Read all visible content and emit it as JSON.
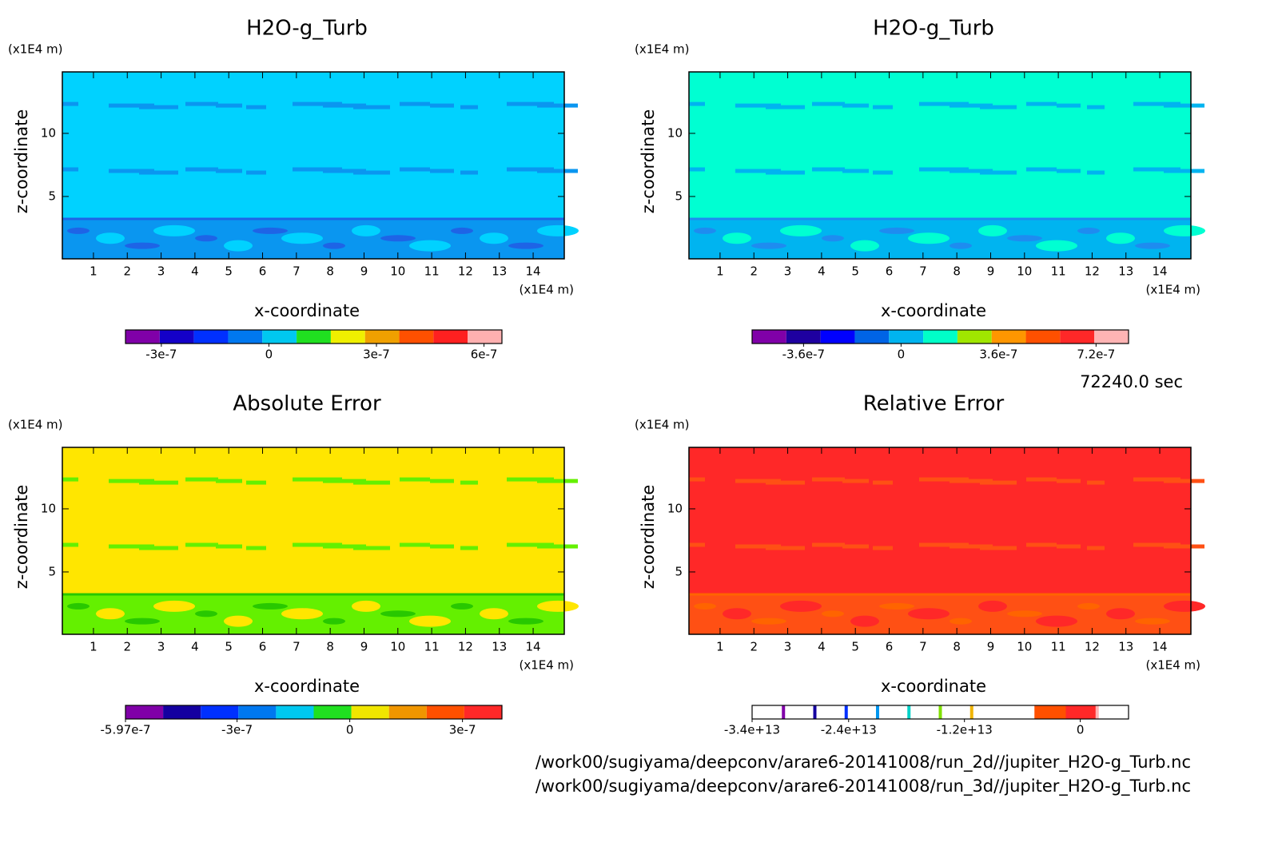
{
  "chart_data": [
    {
      "type": "contour",
      "title": "H2O-g_Turb",
      "x_label": "x-coordinate",
      "y_label": "z-coordinate",
      "x_unit": "(x1E4 m)",
      "y_unit": "(x1E4 m)",
      "xlim": [
        0.08,
        14.92
      ],
      "xticks": [
        1,
        2,
        3,
        4,
        5,
        6,
        7,
        8,
        9,
        10,
        11,
        12,
        13,
        14
      ],
      "ylim": [
        0.06,
        14.87
      ],
      "yticks": [
        5,
        10
      ],
      "field_colors": [
        "#00d2ff",
        "#0a96f0",
        "#1e64e6"
      ],
      "colorbar": {
        "lim": [
          -4e-07,
          6.5e-07
        ],
        "colors": [
          "#8000a8",
          "#1400c8",
          "#0030ff",
          "#0078f0",
          "#00c8f0",
          "#20e020",
          "#f0f000",
          "#f0a000",
          "#ff5000",
          "#ff2020",
          "#ffb0b0"
        ],
        "ticks": [
          {
            "value": -3e-07,
            "label": "-3e-7"
          },
          0,
          {
            "value": 3e-07,
            "label": "3e-7"
          },
          {
            "value": 6e-07,
            "label": "6e-7"
          }
        ]
      }
    },
    {
      "type": "contour",
      "title": "H2O-g_Turb",
      "x_label": "x-coordinate",
      "y_label": "z-coordinate",
      "x_unit": "(x1E4 m)",
      "y_unit": "(x1E4 m)",
      "xlim": [
        0.08,
        14.92
      ],
      "xticks": [
        1,
        2,
        3,
        4,
        5,
        6,
        7,
        8,
        9,
        10,
        11,
        12,
        13,
        14
      ],
      "ylim": [
        0.06,
        14.87
      ],
      "yticks": [
        5,
        10
      ],
      "field_colors": [
        "#00ffd2",
        "#00b4f0",
        "#1e8cf0"
      ],
      "colorbar": {
        "lim": [
          -5.5e-07,
          8.4e-07
        ],
        "colors": [
          "#8000a8",
          "#1e00a0",
          "#0000ff",
          "#0064e6",
          "#00b4f0",
          "#00ffc8",
          "#a0e600",
          "#ff9600",
          "#ff5000",
          "#ff2828",
          "#ffb4b4"
        ],
        "ticks": [
          {
            "value": -3.6e-07,
            "label": "-3.6e-7"
          },
          0,
          {
            "value": 3.6e-07,
            "label": "3.6e-7"
          },
          {
            "value": 7.2e-07,
            "label": "7.2e-7"
          }
        ]
      }
    },
    {
      "type": "contour",
      "title": "Absolute Error",
      "x_label": "x-coordinate",
      "y_label": "z-coordinate",
      "x_unit": "(x1E4 m)",
      "y_unit": "(x1E4 m)",
      "xlim": [
        0.08,
        14.92
      ],
      "xticks": [
        1,
        2,
        3,
        4,
        5,
        6,
        7,
        8,
        9,
        10,
        11,
        12,
        13,
        14
      ],
      "ylim": [
        0.06,
        14.87
      ],
      "yticks": [
        5,
        10
      ],
      "field_colors": [
        "#ffe600",
        "#64f000",
        "#28c800"
      ],
      "colorbar": {
        "lim": [
          -5.97e-07,
          4.05e-07
        ],
        "colors": [
          "#8000a8",
          "#1400a0",
          "#0030ff",
          "#0078f0",
          "#00c8f0",
          "#20e020",
          "#f0e600",
          "#f09600",
          "#ff5000",
          "#ff2828"
        ],
        "ticks": [
          {
            "value": -5.97e-07,
            "label": "-5.97e-7"
          },
          {
            "value": -3e-07,
            "label": "-3e-7"
          },
          0,
          {
            "value": 3e-07,
            "label": "3e-7"
          }
        ]
      }
    },
    {
      "type": "contour",
      "title": "Relative Error",
      "x_label": "x-coordinate",
      "y_label": "z-coordinate",
      "x_unit": "(x1E4 m)",
      "y_unit": "(x1E4 m)",
      "xlim": [
        0.08,
        14.92
      ],
      "xticks": [
        1,
        2,
        3,
        4,
        5,
        6,
        7,
        8,
        9,
        10,
        11,
        12,
        13,
        14
      ],
      "ylim": [
        0.06,
        14.87
      ],
      "yticks": [
        5,
        10
      ],
      "field_colors": [
        "#ff2828",
        "#ff5014",
        "#ff6400"
      ],
      "colorbar": {
        "lim": [
          -34000000000000.0,
          5000000000000.0
        ],
        "colors": [
          "#ffffff",
          "#ffffff",
          "#ffffff",
          "#ffffff",
          "#ffffff",
          "#ffffff",
          "#ffffff",
          "#ffffff",
          "#ffffff",
          "#ff5000",
          "#ff2828",
          "#ffffff"
        ],
        "edge_colors": [
          null,
          "#8000a8",
          "#1400a0",
          "#0030ff",
          "#0096f0",
          "#00d2c8",
          "#80e000",
          "#f0b400",
          null,
          null,
          null,
          "#ffb4b4"
        ],
        "ticks": [
          {
            "value": -34000000000000.0,
            "label": "-3.4e+13"
          },
          {
            "value": -24000000000000.0,
            "label": "-2.4e+13"
          },
          {
            "value": -12000000000000.0,
            "label": "-1.2e+13"
          },
          0
        ]
      }
    }
  ],
  "time_label": "72240.0 sec",
  "file_paths": [
    "/work00/sugiyama/deepconv/arare6-20141008/run_2d//jupiter_H2O-g_Turb.nc",
    "/work00/sugiyama/deepconv/arare6-20141008/run_3d//jupiter_H2O-g_Turb.nc"
  ]
}
